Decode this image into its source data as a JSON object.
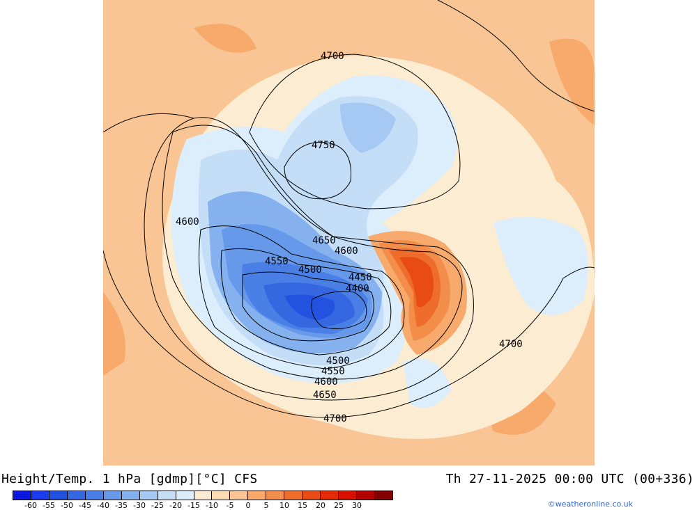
{
  "footer": {
    "title": "Height/Temp. 1 hPa [gdmp][°C] CFS",
    "valid_time": "Th 27-11-2025 00:00 UTC (00+336)",
    "credit": "©weatheronline.co.uk"
  },
  "colorbar": {
    "colors": [
      "#0a18e0",
      "#1a3bef",
      "#2452e0",
      "#3568e0",
      "#4a80e6",
      "#6699ea",
      "#86b1ef",
      "#a5c9f3",
      "#c4def8",
      "#dceefc",
      "#fcecd2",
      "#fbdcb6",
      "#f9c594",
      "#f7aa6c",
      "#f38d4a",
      "#ee6c2c",
      "#e84c14",
      "#e52a08",
      "#d81000",
      "#b40000",
      "#820000"
    ],
    "tick_labels": [
      "-60",
      "-55",
      "-50",
      "-45",
      "-40",
      "-35",
      "-30",
      "-25",
      "-20",
      "-15",
      "-10",
      "-5",
      "0",
      "5",
      "10",
      "15",
      "20",
      "25",
      "30"
    ]
  },
  "contours": {
    "labels": [
      "4700",
      "4750",
      "4600",
      "4650",
      "4600",
      "4550",
      "4500",
      "4450",
      "4400",
      "4500",
      "4550",
      "4600",
      "4650",
      "4700",
      "4700"
    ]
  }
}
